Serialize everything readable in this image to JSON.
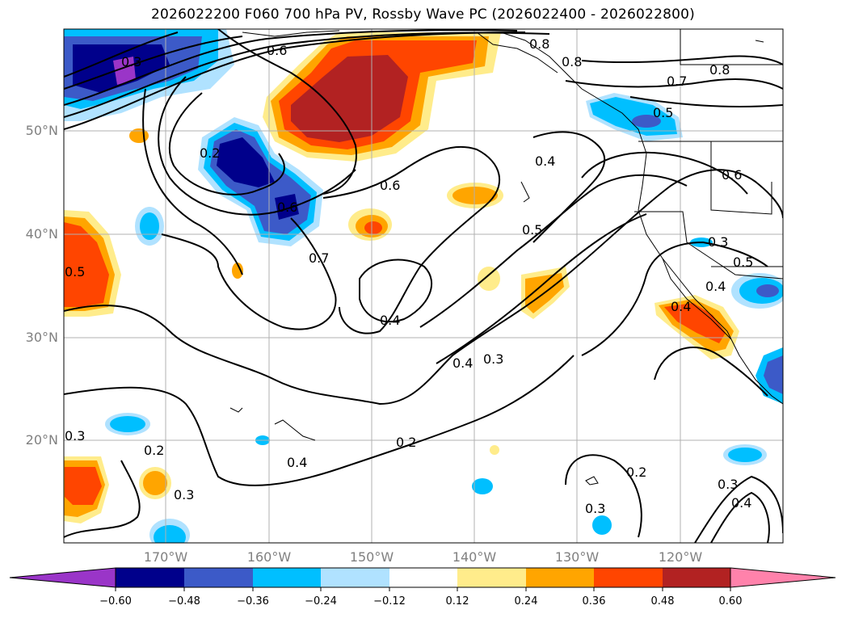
{
  "title": "2026022200 F060 700 hPa PV, Rossby Wave PC (2026022400 - 2026022800)",
  "map": {
    "lat_ticks": [
      "50°N",
      "40°N",
      "30°N",
      "20°N"
    ],
    "lon_ticks": [
      "170°W",
      "160°W",
      "150°W",
      "140°W",
      "130°W",
      "120°W"
    ]
  },
  "contour_labels": [
    "0.6",
    "0.8",
    "0.7",
    "0.8",
    "0.5",
    "0.4",
    "0.6",
    "0.2",
    "0.6",
    "0.7",
    "0.5",
    "0.5",
    "0.4",
    "0.4",
    "0.3",
    "0.3",
    "0.4",
    "0.6",
    "0.5",
    "0.3",
    "0.2",
    "0.4",
    "0.2",
    "0.3",
    "0.3",
    "0.2",
    "0.3",
    "0.4",
    "0.3",
    "0.4",
    "0.8"
  ],
  "colorbar": {
    "ticks": [
      "−0.60",
      "−0.48",
      "−0.36",
      "−0.24",
      "−0.12",
      "0.12",
      "0.24",
      "0.36",
      "0.48",
      "0.60"
    ],
    "colors": [
      "#9a35c8",
      "#00008b",
      "#3c5ac8",
      "#00bfff",
      "#b0e2ff",
      "#ffffff",
      "#ffec8b",
      "#ffa500",
      "#ff4500",
      "#b22222",
      "#ff82ab"
    ]
  }
}
